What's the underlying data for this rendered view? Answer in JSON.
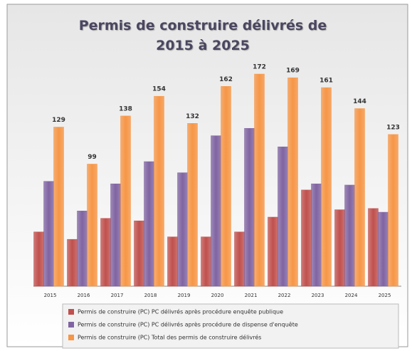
{
  "chart_data": {
    "type": "bar",
    "title": "Permis de construire délivrés de 2015 à 2025",
    "categories": [
      "2015",
      "2016",
      "2017",
      "2018",
      "2019",
      "2020",
      "2021",
      "2022",
      "2023",
      "2024",
      "2025"
    ],
    "series": [
      {
        "name": "Permis de construire (PC) PC délivrés après procédure enquête publique",
        "color": "#c0504d",
        "values": [
          44,
          38,
          55,
          53,
          40,
          40,
          44,
          56,
          78,
          62,
          63
        ]
      },
      {
        "name": "Permis de construire (PC) PC délivrés après procédure de dispense d'enquête",
        "color": "#8064a2",
        "values": [
          85,
          61,
          83,
          101,
          92,
          122,
          128,
          113,
          83,
          82,
          60
        ]
      },
      {
        "name": "Permis de construire (PC) Total des permis de construire délivrés",
        "color": "#f79646",
        "values": [
          129,
          99,
          138,
          154,
          132,
          162,
          172,
          169,
          161,
          144,
          123
        ],
        "data_labels": true
      }
    ],
    "legend": "bottom"
  }
}
